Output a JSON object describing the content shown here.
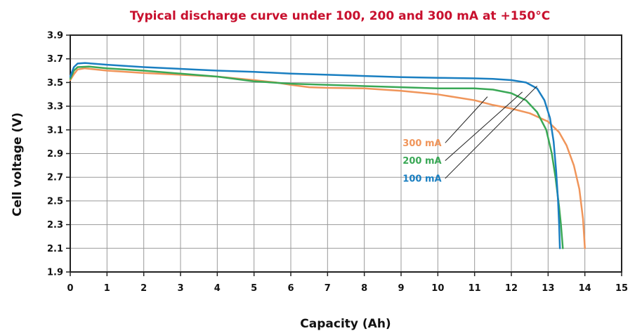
{
  "chart_data": {
    "type": "line",
    "title": "Typical discharge curve under 100, 200 and 300 mA at +150°C",
    "xlabel": "Capacity (Ah)",
    "ylabel": "Cell voltage (V)",
    "xlim": [
      0,
      15
    ],
    "ylim": [
      1.9,
      3.9
    ],
    "xticks": [
      "0",
      "1",
      "2",
      "3",
      "4",
      "5",
      "6",
      "7",
      "8",
      "9",
      "10",
      "11",
      "12",
      "13",
      "14",
      "15"
    ],
    "yticks": [
      "1.9",
      "2.1",
      "2.3",
      "2.5",
      "2.7",
      "2.9",
      "3.1",
      "3.3",
      "3.5",
      "3.7",
      "3.9"
    ],
    "grid": true,
    "series": [
      {
        "name": "300 mA",
        "color": "#f0955a",
        "points": [
          [
            0,
            3.52
          ],
          [
            0.1,
            3.57
          ],
          [
            0.2,
            3.61
          ],
          [
            0.4,
            3.62
          ],
          [
            1,
            3.6
          ],
          [
            2,
            3.58
          ],
          [
            3,
            3.565
          ],
          [
            4,
            3.55
          ],
          [
            5,
            3.52
          ],
          [
            5.6,
            3.5
          ],
          [
            6,
            3.48
          ],
          [
            6.5,
            3.46
          ],
          [
            7,
            3.455
          ],
          [
            8,
            3.45
          ],
          [
            9,
            3.43
          ],
          [
            10,
            3.4
          ],
          [
            11,
            3.35
          ],
          [
            11.5,
            3.31
          ],
          [
            12,
            3.28
          ],
          [
            12.5,
            3.24
          ],
          [
            13,
            3.17
          ],
          [
            13.3,
            3.08
          ],
          [
            13.5,
            2.97
          ],
          [
            13.7,
            2.8
          ],
          [
            13.85,
            2.6
          ],
          [
            13.95,
            2.35
          ],
          [
            14.0,
            2.1
          ]
        ]
      },
      {
        "name": "200 mA",
        "color": "#3aa856",
        "points": [
          [
            0,
            3.53
          ],
          [
            0.1,
            3.6
          ],
          [
            0.2,
            3.63
          ],
          [
            0.5,
            3.635
          ],
          [
            1,
            3.62
          ],
          [
            2,
            3.6
          ],
          [
            3,
            3.575
          ],
          [
            4,
            3.55
          ],
          [
            5,
            3.51
          ],
          [
            6,
            3.49
          ],
          [
            7,
            3.48
          ],
          [
            8,
            3.47
          ],
          [
            9,
            3.46
          ],
          [
            10,
            3.45
          ],
          [
            11,
            3.45
          ],
          [
            11.5,
            3.44
          ],
          [
            12,
            3.41
          ],
          [
            12.4,
            3.35
          ],
          [
            12.7,
            3.25
          ],
          [
            12.95,
            3.1
          ],
          [
            13.1,
            2.9
          ],
          [
            13.2,
            2.7
          ],
          [
            13.3,
            2.45
          ],
          [
            13.35,
            2.3
          ],
          [
            13.4,
            2.1
          ]
        ]
      },
      {
        "name": "100 mA",
        "color": "#1a7fc1",
        "points": [
          [
            0,
            3.55
          ],
          [
            0.1,
            3.63
          ],
          [
            0.2,
            3.66
          ],
          [
            0.4,
            3.665
          ],
          [
            1,
            3.65
          ],
          [
            2,
            3.63
          ],
          [
            3,
            3.615
          ],
          [
            4,
            3.6
          ],
          [
            5,
            3.59
          ],
          [
            6,
            3.575
          ],
          [
            7,
            3.565
          ],
          [
            8,
            3.555
          ],
          [
            9,
            3.545
          ],
          [
            10,
            3.54
          ],
          [
            11,
            3.535
          ],
          [
            11.5,
            3.53
          ],
          [
            12,
            3.52
          ],
          [
            12.4,
            3.5
          ],
          [
            12.7,
            3.45
          ],
          [
            12.9,
            3.35
          ],
          [
            13.05,
            3.2
          ],
          [
            13.15,
            3.0
          ],
          [
            13.22,
            2.75
          ],
          [
            13.27,
            2.5
          ],
          [
            13.3,
            2.3
          ],
          [
            13.32,
            2.1
          ]
        ]
      }
    ],
    "annotations": [
      {
        "text": "300 mA",
        "color": "#f0955a",
        "label_at": [
          10.1,
          2.99
        ],
        "pointer_from": [
          10.2,
          2.99
        ],
        "pointer_to": [
          11.35,
          3.38
        ]
      },
      {
        "text": "200 mA",
        "color": "#3aa856",
        "label_at": [
          10.1,
          2.84
        ],
        "pointer_from": [
          10.2,
          2.84
        ],
        "pointer_to": [
          12.3,
          3.42
        ]
      },
      {
        "text": "100 mA",
        "color": "#1a7fc1",
        "label_at": [
          10.1,
          2.69
        ],
        "pointer_from": [
          10.2,
          2.69
        ],
        "pointer_to": [
          12.7,
          3.47
        ]
      }
    ]
  }
}
